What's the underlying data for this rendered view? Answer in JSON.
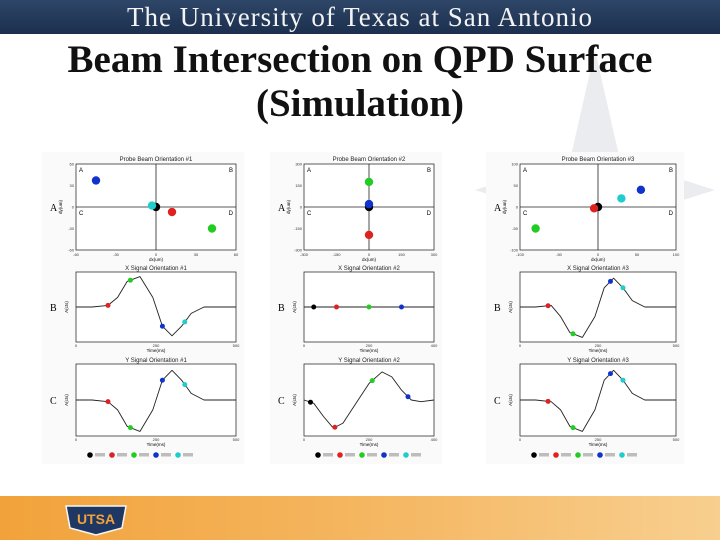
{
  "header": {
    "title": "The University of Texas at San Antonio",
    "color": "#24395a"
  },
  "slide": {
    "title_line1": "Beam Intersection on QPD Surface",
    "title_line2": "(Simulation)"
  },
  "footer": {
    "logo_text": "UTSA",
    "color": "#f4a847"
  },
  "marker_colors": [
    "#000000",
    "#dd2222",
    "#22cc22",
    "#1133cc",
    "#22cccc"
  ],
  "row_labels": [
    "A",
    "B",
    "C"
  ],
  "chart_data": [
    {
      "type": "scatter",
      "title": "Probe Beam Orientation #1",
      "xlabel": "dx(um)",
      "ylabel": "dy(um)",
      "xlim": [
        -60,
        60
      ],
      "ylim": [
        -60,
        60
      ],
      "quadrants": [
        "A",
        "B",
        "C",
        "D"
      ],
      "points": [
        {
          "x": 0,
          "y": 0,
          "color": "#000000"
        },
        {
          "x": -45,
          "y": 37,
          "color": "#1133cc"
        },
        {
          "x": -3,
          "y": 2,
          "color": "#22cccc"
        },
        {
          "x": 12,
          "y": -7,
          "color": "#dd2222"
        },
        {
          "x": 42,
          "y": -30,
          "color": "#22cc22"
        }
      ],
      "signals": [
        {
          "title": "X Signal Orientation #1",
          "ylabel": "A(cts)",
          "xlabel": "Time(ms)",
          "xlim": [
            0,
            500
          ],
          "ylim": [
            -1,
            1
          ],
          "x": [
            0,
            50,
            100,
            130,
            160,
            200,
            240,
            270,
            300,
            330,
            360,
            400,
            450,
            500
          ],
          "y": [
            0,
            0,
            0.05,
            0.3,
            0.8,
            0.95,
            0.3,
            -0.6,
            -0.9,
            -0.6,
            -0.2,
            0,
            0,
            0
          ],
          "markers": [
            {
              "x": 100,
              "color": "#dd2222"
            },
            {
              "x": 170,
              "color": "#22cc22"
            },
            {
              "x": 270,
              "color": "#1133cc"
            },
            {
              "x": 340,
              "color": "#22cccc"
            }
          ]
        },
        {
          "title": "Y Signal Orientation #1",
          "ylabel": "A(cts)",
          "xlabel": "Time(ms)",
          "xlim": [
            0,
            500
          ],
          "ylim": [
            -1,
            1
          ],
          "x": [
            0,
            50,
            100,
            130,
            160,
            200,
            240,
            270,
            300,
            330,
            360,
            400,
            450,
            500
          ],
          "y": [
            0,
            0,
            -0.05,
            -0.3,
            -0.8,
            -0.95,
            -0.3,
            0.6,
            0.9,
            0.6,
            0.2,
            0,
            0,
            0
          ],
          "markers": [
            {
              "x": 100,
              "color": "#dd2222"
            },
            {
              "x": 170,
              "color": "#22cc22"
            },
            {
              "x": 270,
              "color": "#1133cc"
            },
            {
              "x": 340,
              "color": "#22cccc"
            }
          ]
        }
      ]
    },
    {
      "type": "scatter",
      "title": "Probe Beam Orientation #2",
      "xlabel": "dx(um)",
      "ylabel": "dy(um)",
      "xlim": [
        -300,
        300
      ],
      "ylim": [
        -300,
        300
      ],
      "quadrants": [
        "A",
        "B",
        "C",
        "D"
      ],
      "points": [
        {
          "x": 0,
          "y": 0,
          "color": "#000000"
        },
        {
          "x": 0,
          "y": 175,
          "color": "#22cc22"
        },
        {
          "x": 0,
          "y": 20,
          "color": "#1133cc"
        },
        {
          "x": 0,
          "y": -195,
          "color": "#dd2222"
        }
      ],
      "signals": [
        {
          "title": "X Signal Orientation #2",
          "ylabel": "A(cts)",
          "xlabel": "Time(ms)",
          "xlim": [
            0,
            400
          ],
          "ylim": [
            -1,
            1
          ],
          "x": [
            0,
            400
          ],
          "y": [
            0,
            0
          ],
          "markers": [
            {
              "x": 30,
              "color": "#000000"
            },
            {
              "x": 100,
              "color": "#dd2222"
            },
            {
              "x": 200,
              "color": "#22cc22"
            },
            {
              "x": 300,
              "color": "#1133cc"
            }
          ]
        },
        {
          "title": "Y Signal Orientation #2",
          "ylabel": "A(cts)",
          "xlabel": "Time(ms)",
          "xlim": [
            0,
            400
          ],
          "ylim": [
            -1,
            1
          ],
          "x": [
            0,
            30,
            60,
            90,
            120,
            160,
            200,
            240,
            270,
            300,
            330,
            360,
            400
          ],
          "y": [
            0,
            -0.1,
            -0.5,
            -0.85,
            -0.7,
            -0.1,
            0.5,
            0.85,
            0.7,
            0.3,
            0,
            -0.05,
            0
          ],
          "markers": [
            {
              "x": 20,
              "color": "#000000"
            },
            {
              "x": 95,
              "color": "#dd2222"
            },
            {
              "x": 210,
              "color": "#22cc22"
            },
            {
              "x": 320,
              "color": "#1133cc"
            }
          ]
        }
      ]
    },
    {
      "type": "scatter",
      "title": "Probe Beam Orientation #3",
      "xlabel": "dx(um)",
      "ylabel": "dy(um)",
      "xlim": [
        -100,
        100
      ],
      "ylim": [
        -100,
        100
      ],
      "quadrants": [
        "A",
        "B",
        "C",
        "D"
      ],
      "points": [
        {
          "x": 0,
          "y": 0,
          "color": "#000000"
        },
        {
          "x": -5,
          "y": -3,
          "color": "#dd2222"
        },
        {
          "x": -80,
          "y": -50,
          "color": "#22cc22"
        },
        {
          "x": 55,
          "y": 40,
          "color": "#1133cc"
        },
        {
          "x": 30,
          "y": 20,
          "color": "#22cccc"
        }
      ],
      "signals": [
        {
          "title": "X Signal Orientation #3",
          "ylabel": "A(cts)",
          "xlabel": "Time(ms)",
          "xlim": [
            0,
            500
          ],
          "ylim": [
            -1,
            1
          ],
          "x": [
            0,
            50,
            100,
            130,
            160,
            200,
            240,
            270,
            300,
            330,
            360,
            400,
            450,
            500
          ],
          "y": [
            0,
            0,
            0.05,
            -0.3,
            -0.8,
            -0.95,
            -0.3,
            0.6,
            0.9,
            0.6,
            0.2,
            0,
            0,
            0
          ],
          "markers": [
            {
              "x": 90,
              "color": "#dd2222"
            },
            {
              "x": 170,
              "color": "#22cc22"
            },
            {
              "x": 290,
              "color": "#1133cc"
            },
            {
              "x": 330,
              "color": "#22cccc"
            }
          ]
        },
        {
          "title": "Y Signal Orientation #3",
          "ylabel": "A(cts)",
          "xlabel": "Time(ms)",
          "xlim": [
            0,
            500
          ],
          "ylim": [
            -1,
            1
          ],
          "x": [
            0,
            50,
            100,
            130,
            160,
            200,
            240,
            270,
            300,
            330,
            360,
            400,
            450,
            500
          ],
          "y": [
            0,
            0,
            -0.05,
            -0.3,
            -0.8,
            -0.95,
            -0.3,
            0.6,
            0.9,
            0.6,
            0.2,
            0,
            0,
            0
          ],
          "markers": [
            {
              "x": 90,
              "color": "#dd2222"
            },
            {
              "x": 170,
              "color": "#22cc22"
            },
            {
              "x": 290,
              "color": "#1133cc"
            },
            {
              "x": 330,
              "color": "#22cccc"
            }
          ]
        }
      ]
    }
  ]
}
